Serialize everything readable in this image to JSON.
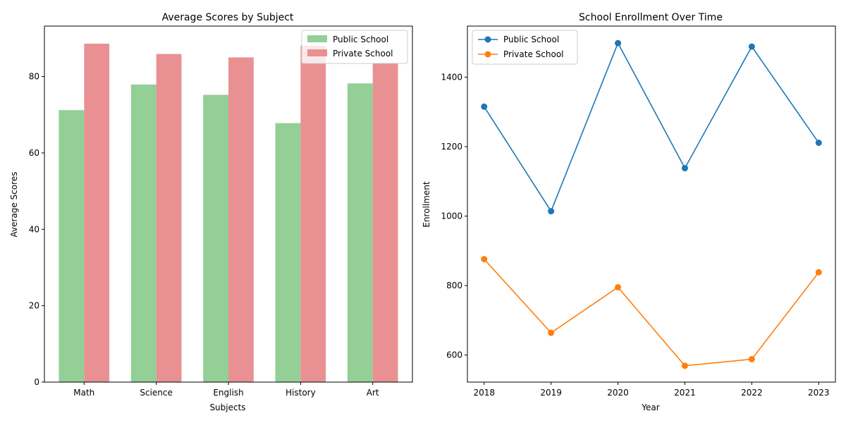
{
  "chart_data": [
    {
      "type": "bar",
      "title": "Average Scores by Subject",
      "xlabel": "Subjects",
      "ylabel": "Average Scores",
      "categories": [
        "Math",
        "Science",
        "English",
        "History",
        "Art"
      ],
      "ylim": [
        0,
        93.2
      ],
      "yticks": [
        0,
        20,
        40,
        60,
        80
      ],
      "legend": "top-right",
      "grid": false,
      "series": [
        {
          "name": "Public School",
          "color": "#93cf96",
          "values": [
            71.2,
            77.9,
            75.2,
            67.8,
            78.2
          ]
        },
        {
          "name": "Private School",
          "color": "#e99192",
          "values": [
            88.6,
            85.9,
            85.0,
            88.1,
            83.6
          ]
        }
      ]
    },
    {
      "type": "line",
      "title": "School Enrollment Over Time",
      "xlabel": "Year",
      "ylabel": "Enrollment",
      "x": [
        2018,
        2019,
        2020,
        2021,
        2022,
        2023
      ],
      "xticks": [
        "2018",
        "2019",
        "2020",
        "2021",
        "2022",
        "2023"
      ],
      "xlim": [
        2017.75,
        2023.25
      ],
      "ylim": [
        522,
        1547
      ],
      "yticks": [
        600,
        800,
        1000,
        1200,
        1400
      ],
      "legend": "top-left",
      "grid": false,
      "series": [
        {
          "name": "Public School",
          "color": "#1f77b4",
          "values": [
            1315,
            1014,
            1498,
            1138,
            1488,
            1211
          ]
        },
        {
          "name": "Private School",
          "color": "#ff7f0e",
          "values": [
            876,
            664,
            795,
            569,
            588,
            838
          ]
        }
      ]
    }
  ]
}
